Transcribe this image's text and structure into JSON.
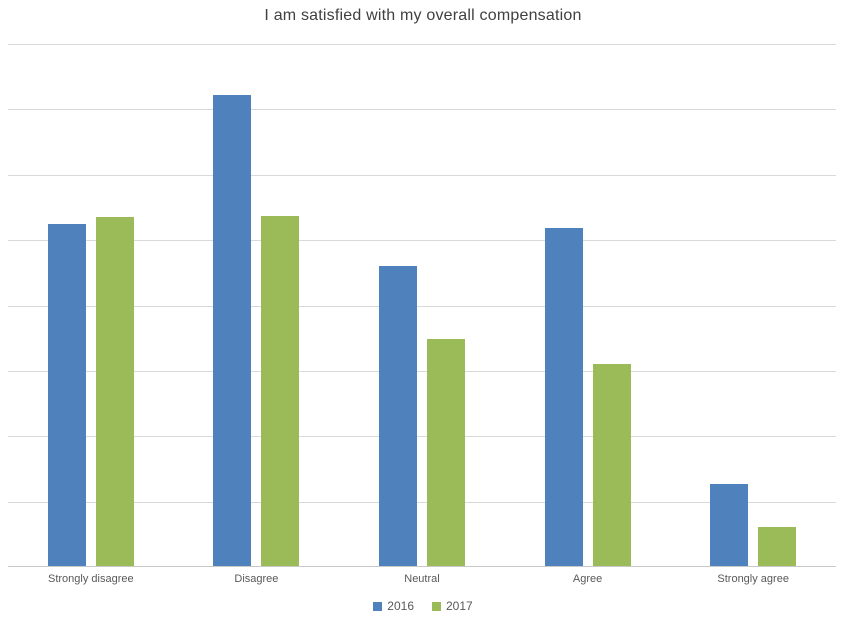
{
  "chart_data": {
    "type": "bar",
    "title": "I am satisfied with my overall compensation",
    "categories": [
      "Strongly disagree",
      "Disagree",
      "Neutral",
      "Agree",
      "Strongly agree"
    ],
    "series": [
      {
        "name": "2016",
        "color": "#4F81BD",
        "values": [
          5.25,
          7.22,
          4.6,
          5.19,
          1.27
        ]
      },
      {
        "name": "2017",
        "color": "#9BBB59",
        "values": [
          5.35,
          5.37,
          3.49,
          3.1,
          0.61
        ]
      }
    ],
    "xlabel": "",
    "ylabel": "",
    "ylim": [
      0,
      8
    ],
    "gridline_interval": 1,
    "grid": true,
    "y_tick_labels_visible": false,
    "legend_position": "bottom"
  },
  "style": {
    "background": "#FFFFFF",
    "title_color": "#404040",
    "label_color": "#595959",
    "gridline_color": "#D9D9D9",
    "axis_line_color": "#C8C8C8"
  }
}
